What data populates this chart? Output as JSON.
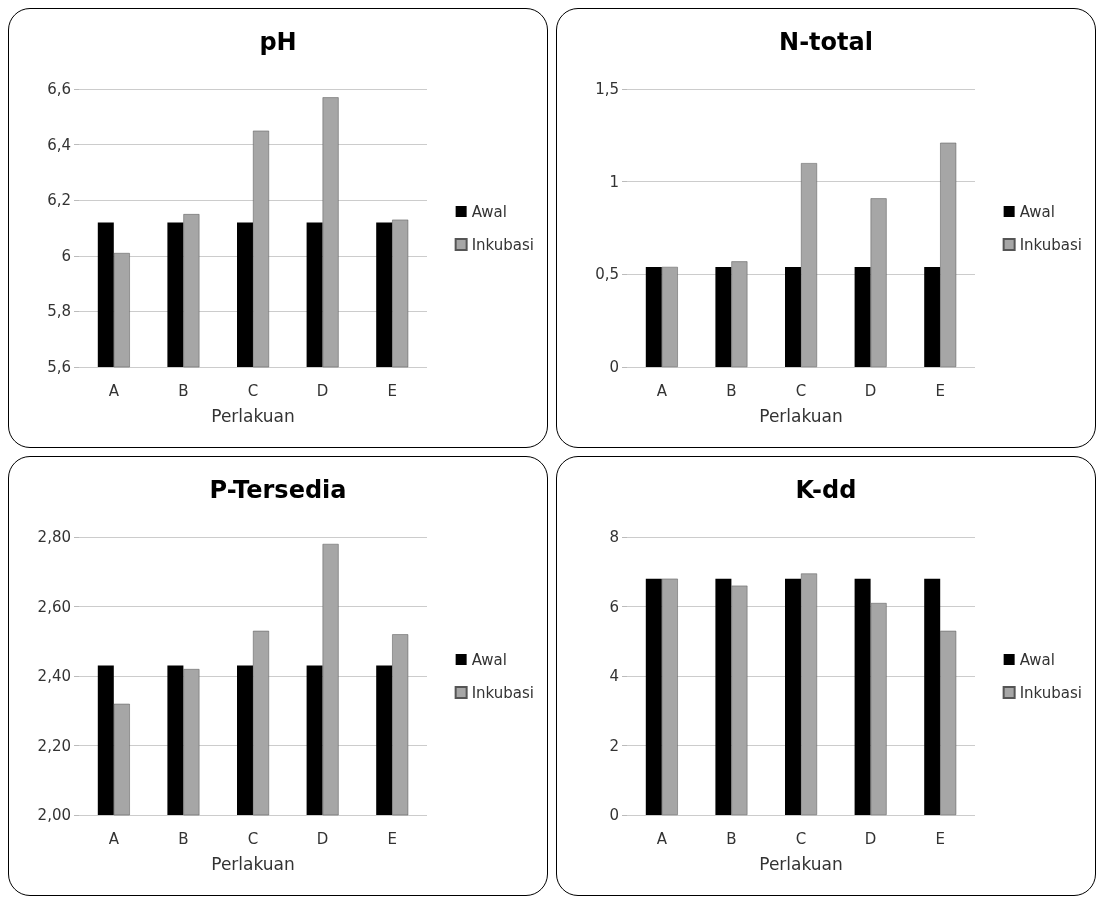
{
  "chart_data": [
    {
      "type": "bar",
      "title": "pH",
      "xlabel": "Perlakuan",
      "categories": [
        "A",
        "B",
        "C",
        "D",
        "E"
      ],
      "series": [
        {
          "name": "Awal",
          "color": "#000000",
          "values": [
            6.12,
            6.12,
            6.12,
            6.12,
            6.12
          ]
        },
        {
          "name": "Inkubasi",
          "color": "#a6a6a6",
          "values": [
            6.01,
            6.15,
            6.45,
            6.57,
            6.13
          ]
        }
      ],
      "ylim": [
        5.6,
        6.6
      ],
      "yticks": [
        {
          "value": 5.6,
          "label": "5,6"
        },
        {
          "value": 5.8,
          "label": "5,8"
        },
        {
          "value": 6,
          "label": "6"
        },
        {
          "value": 6.2,
          "label": "6,2"
        },
        {
          "value": 6.4,
          "label": "6,4"
        },
        {
          "value": 6.6,
          "label": "6,6"
        }
      ],
      "grid": "y",
      "legend": "right"
    },
    {
      "type": "bar",
      "title": "N-total",
      "xlabel": "Perlakuan",
      "categories": [
        "A",
        "B",
        "C",
        "D",
        "E"
      ],
      "series": [
        {
          "name": "Awal",
          "color": "#000000",
          "values": [
            0.54,
            0.54,
            0.54,
            0.54,
            0.54
          ]
        },
        {
          "name": "Inkubasi",
          "color": "#a6a6a6",
          "values": [
            0.54,
            0.57,
            1.1,
            0.91,
            1.21
          ]
        }
      ],
      "ylim": [
        0,
        1.5
      ],
      "yticks": [
        0,
        {
          "value": 0.5,
          "label": "0,5"
        },
        1,
        {
          "value": 1.5,
          "label": "1,5"
        }
      ],
      "grid": "y",
      "legend": "right"
    },
    {
      "type": "bar",
      "title": "P-Tersedia",
      "xlabel": "Perlakuan",
      "categories": [
        "A",
        "B",
        "C",
        "D",
        "E"
      ],
      "series": [
        {
          "name": "Awal",
          "color": "#000000",
          "values": [
            2.43,
            2.43,
            2.43,
            2.43,
            2.43
          ]
        },
        {
          "name": "Inkubasi",
          "color": "#a6a6a6",
          "values": [
            2.32,
            2.42,
            2.53,
            2.78,
            2.52
          ]
        }
      ],
      "ylim": [
        2,
        2.8
      ],
      "yticks": [
        {
          "value": 2,
          "label": "2,00"
        },
        {
          "value": 2.2,
          "label": "2,20"
        },
        {
          "value": 2.4,
          "label": "2,40"
        },
        {
          "value": 2.6,
          "label": "2,60"
        },
        {
          "value": 2.8,
          "label": "2,80"
        }
      ],
      "grid": "y",
      "legend": "right"
    },
    {
      "type": "bar",
      "title": "K-dd",
      "xlabel": "Perlakuan",
      "categories": [
        "A",
        "B",
        "C",
        "D",
        "E"
      ],
      "series": [
        {
          "name": "Awal",
          "color": "#000000",
          "values": [
            6.8,
            6.8,
            6.8,
            6.8,
            6.8
          ]
        },
        {
          "name": "Inkubasi",
          "color": "#a6a6a6",
          "values": [
            6.8,
            6.6,
            6.95,
            6.1,
            5.3
          ]
        }
      ],
      "ylim": [
        0,
        8
      ],
      "yticks": [
        0,
        2,
        4,
        6,
        8
      ],
      "grid": "y",
      "legend": "right"
    }
  ]
}
